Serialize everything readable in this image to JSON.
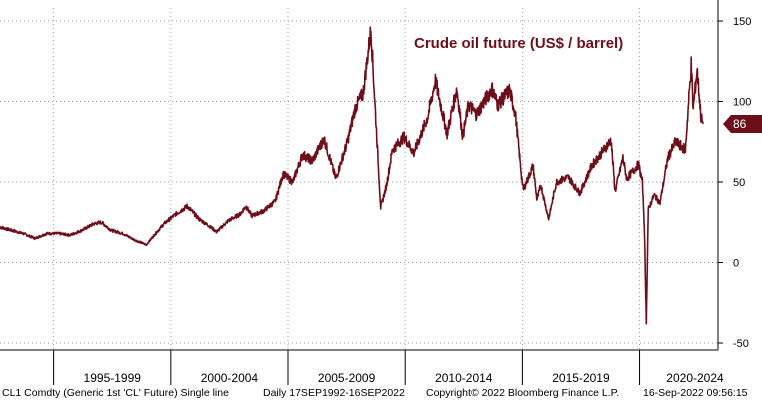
{
  "chart_data": {
    "type": "line",
    "title": "Crude oil future (US$ / barrel)",
    "xlabel": "",
    "ylabel": "",
    "x_range": [
      "1992-09-17",
      "2022-09-16"
    ],
    "ylim": [
      -50,
      150
    ],
    "yticks": [
      150,
      100,
      50,
      0,
      -50
    ],
    "x_tick_labels": [
      "1995-1999",
      "2000-2004",
      "2005-2009",
      "2010-2014",
      "2015-2019",
      "2020-2024"
    ],
    "y_axis_side": "right",
    "grid": true,
    "last_value_label": "86",
    "series": [
      {
        "name": "",
        "color": "#6d0f1b",
        "points": [
          [
            "1992-09",
            22
          ],
          [
            "1993-03",
            20
          ],
          [
            "1993-09",
            18
          ],
          [
            "1994-03",
            15
          ],
          [
            "1994-09",
            18
          ],
          [
            "1995-03",
            18
          ],
          [
            "1995-09",
            17
          ],
          [
            "1996-03",
            20
          ],
          [
            "1996-09",
            24
          ],
          [
            "1997-01",
            25
          ],
          [
            "1997-06",
            20
          ],
          [
            "1997-12",
            18
          ],
          [
            "1998-06",
            14
          ],
          [
            "1998-12",
            11
          ],
          [
            "1999-04",
            17
          ],
          [
            "1999-09",
            24
          ],
          [
            "2000-03",
            30
          ],
          [
            "2000-09",
            35
          ],
          [
            "2001-03",
            27
          ],
          [
            "2001-09",
            22
          ],
          [
            "2001-12",
            19
          ],
          [
            "2002-06",
            26
          ],
          [
            "2002-12",
            30
          ],
          [
            "2003-03",
            35
          ],
          [
            "2003-06",
            29
          ],
          [
            "2003-12",
            32
          ],
          [
            "2004-06",
            38
          ],
          [
            "2004-10",
            55
          ],
          [
            "2005-03",
            50
          ],
          [
            "2005-08",
            67
          ],
          [
            "2006-01",
            63
          ],
          [
            "2006-07",
            77
          ],
          [
            "2007-01",
            52
          ],
          [
            "2007-07",
            75
          ],
          [
            "2007-11",
            96
          ],
          [
            "2008-03",
            105
          ],
          [
            "2008-07",
            145
          ],
          [
            "2008-09",
            100
          ],
          [
            "2008-12",
            34
          ],
          [
            "2009-03",
            48
          ],
          [
            "2009-06",
            70
          ],
          [
            "2009-12",
            78
          ],
          [
            "2010-05",
            68
          ],
          [
            "2010-12",
            90
          ],
          [
            "2011-04",
            113
          ],
          [
            "2011-10",
            80
          ],
          [
            "2012-03",
            108
          ],
          [
            "2012-06",
            78
          ],
          [
            "2012-09",
            98
          ],
          [
            "2013-01",
            92
          ],
          [
            "2013-09",
            108
          ],
          [
            "2013-12",
            98
          ],
          [
            "2014-06",
            107
          ],
          [
            "2014-09",
            92
          ],
          [
            "2014-12",
            55
          ],
          [
            "2015-01",
            45
          ],
          [
            "2015-06",
            60
          ],
          [
            "2015-08",
            39
          ],
          [
            "2015-10",
            48
          ],
          [
            "2016-02",
            27
          ],
          [
            "2016-06",
            50
          ],
          [
            "2016-12",
            53
          ],
          [
            "2017-06",
            43
          ],
          [
            "2017-12",
            60
          ],
          [
            "2018-10",
            76
          ],
          [
            "2018-12",
            44
          ],
          [
            "2019-04",
            65
          ],
          [
            "2019-06",
            52
          ],
          [
            "2019-12",
            61
          ],
          [
            "2020-02",
            50
          ],
          [
            "2020-03",
            22
          ],
          [
            "2020-04",
            -37
          ],
          [
            "2020-05",
            33
          ],
          [
            "2020-08",
            42
          ],
          [
            "2020-11",
            37
          ],
          [
            "2021-03",
            65
          ],
          [
            "2021-07",
            75
          ],
          [
            "2021-12",
            70
          ],
          [
            "2022-03",
            123
          ],
          [
            "2022-04",
            95
          ],
          [
            "2022-06",
            120
          ],
          [
            "2022-08",
            90
          ],
          [
            "2022-09-16",
            86
          ]
        ]
      }
    ]
  },
  "footer": {
    "ticker": "CL1 Comdty (Generic 1st 'CL' Future) Single line",
    "range": "Daily 17SEP1992-16SEP2022",
    "copyright": "Copyright© 2022 Bloomberg Finance L.P.",
    "timestamp": "16-Sep-2022 09:56:15"
  }
}
